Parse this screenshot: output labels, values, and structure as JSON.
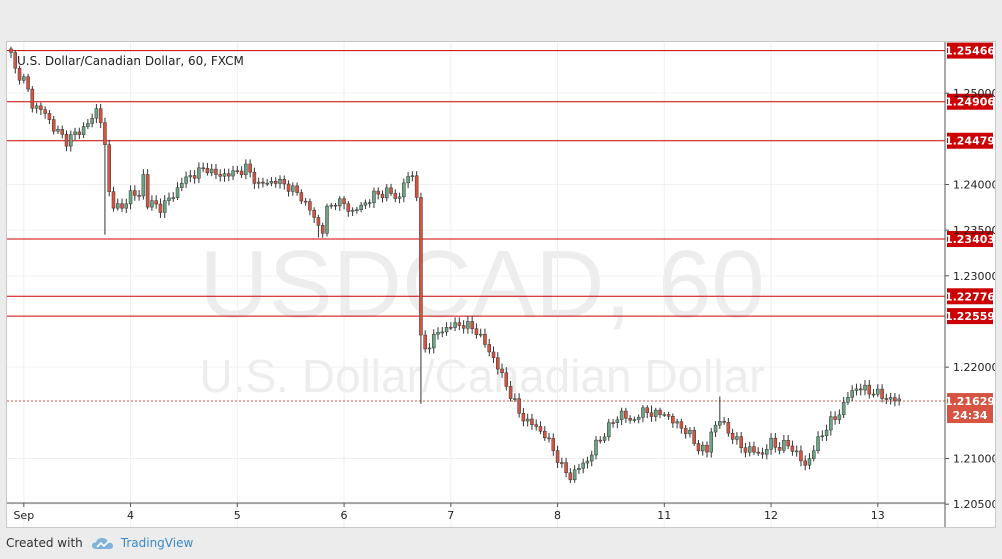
{
  "chart_data": {
    "type": "candlestick",
    "title": "U.S. Dollar/Canadian Dollar, 60, FXCM",
    "watermark_symbol": "USDCAD, 60",
    "watermark_name": "U.S. Dollar/Canadian Dollar",
    "ylim": [
      1.2025,
      1.2556
    ],
    "y_ticks": [
      "1.25000",
      "1.24000",
      "1.23500",
      "1.23000",
      "1.22000",
      "1.21000",
      "1.20500"
    ],
    "x_ticks": [
      {
        "label": "Sep",
        "index": 3
      },
      {
        "label": "4",
        "index": 28
      },
      {
        "label": "5",
        "index": 53
      },
      {
        "label": "6",
        "index": 78
      },
      {
        "label": "7",
        "index": 103
      },
      {
        "label": "8",
        "index": 128
      },
      {
        "label": "11",
        "index": 153
      },
      {
        "label": "12",
        "index": 178
      },
      {
        "label": "13",
        "index": 203
      }
    ],
    "levels": [
      {
        "value": 1.25466,
        "label": "1.25466"
      },
      {
        "value": 1.24906,
        "label": "1.24906"
      },
      {
        "value": 1.24479,
        "label": "1.24479"
      },
      {
        "value": 1.23403,
        "label": "1.23403"
      },
      {
        "value": 1.22776,
        "label": "1.22776"
      },
      {
        "value": 1.22559,
        "label": "1.22559"
      }
    ],
    "last_price": {
      "value": 1.21629,
      "label": "1.21629",
      "countdown": "24:34"
    },
    "colors": {
      "up": "#6ba583",
      "down": "#d75442",
      "level": "#cc0000",
      "wick": "#333333"
    },
    "close_path": [
      [
        0,
        1.2542
      ],
      [
        1,
        1.2525
      ],
      [
        3,
        1.2515
      ],
      [
        5,
        1.2488
      ],
      [
        8,
        1.2478
      ],
      [
        10,
        1.2462
      ],
      [
        13,
        1.2448
      ],
      [
        15,
        1.2455
      ],
      [
        17,
        1.2462
      ],
      [
        19,
        1.2472
      ],
      [
        20,
        1.2482
      ],
      [
        21,
        1.2472
      ],
      [
        22,
        1.244
      ],
      [
        23,
        1.239
      ],
      [
        24,
        1.238
      ],
      [
        26,
        1.2372
      ],
      [
        28,
        1.2392
      ],
      [
        30,
        1.2386
      ],
      [
        31,
        1.241
      ],
      [
        32,
        1.238
      ],
      [
        35,
        1.2375
      ],
      [
        38,
        1.2388
      ],
      [
        40,
        1.2403
      ],
      [
        43,
        1.2412
      ],
      [
        46,
        1.2418
      ],
      [
        48,
        1.241
      ],
      [
        52,
        1.2412
      ],
      [
        55,
        1.2418
      ],
      [
        58,
        1.24
      ],
      [
        62,
        1.2404
      ],
      [
        65,
        1.2398
      ],
      [
        68,
        1.2386
      ],
      [
        70,
        1.2372
      ],
      [
        72,
        1.2355
      ],
      [
        73,
        1.235
      ],
      [
        74,
        1.2372
      ],
      [
        76,
        1.2382
      ],
      [
        78,
        1.2378
      ],
      [
        80,
        1.237
      ],
      [
        82,
        1.2376
      ],
      [
        85,
        1.2388
      ],
      [
        88,
        1.2392
      ],
      [
        91,
        1.2385
      ],
      [
        92,
        1.2403
      ],
      [
        94,
        1.241
      ],
      [
        95,
        1.239
      ],
      [
        96,
        1.223
      ],
      [
        97,
        1.222
      ],
      [
        100,
        1.2238
      ],
      [
        103,
        1.2245
      ],
      [
        106,
        1.2247
      ],
      [
        109,
        1.224
      ],
      [
        111,
        1.2225
      ],
      [
        113,
        1.221
      ],
      [
        115,
        1.219
      ],
      [
        117,
        1.217
      ],
      [
        119,
        1.215
      ],
      [
        121,
        1.214
      ],
      [
        123,
        1.2135
      ],
      [
        125,
        1.2125
      ],
      [
        127,
        1.211
      ],
      [
        129,
        1.209
      ],
      [
        131,
        1.208
      ],
      [
        133,
        1.209
      ],
      [
        135,
        1.2098
      ],
      [
        137,
        1.2115
      ],
      [
        139,
        1.2128
      ],
      [
        141,
        1.214
      ],
      [
        143,
        1.215
      ],
      [
        145,
        1.214
      ],
      [
        147,
        1.2148
      ],
      [
        149,
        1.2152
      ],
      [
        151,
        1.2148
      ],
      [
        153,
        1.215
      ],
      [
        155,
        1.214
      ],
      [
        157,
        1.2135
      ],
      [
        159,
        1.2125
      ],
      [
        161,
        1.2112
      ],
      [
        163,
        1.2108
      ],
      [
        164,
        1.213
      ],
      [
        166,
        1.2142
      ],
      [
        168,
        1.213
      ],
      [
        170,
        1.2118
      ],
      [
        172,
        1.211
      ],
      [
        174,
        1.2108
      ],
      [
        176,
        1.2105
      ],
      [
        178,
        1.2118
      ],
      [
        180,
        1.2112
      ],
      [
        182,
        1.2116
      ],
      [
        184,
        1.2105
      ],
      [
        186,
        1.2092
      ],
      [
        188,
        1.211
      ],
      [
        190,
        1.2128
      ],
      [
        192,
        1.214
      ],
      [
        194,
        1.215
      ],
      [
        196,
        1.2168
      ],
      [
        198,
        1.2178
      ],
      [
        200,
        1.2175
      ],
      [
        202,
        1.2173
      ],
      [
        204,
        1.2168
      ],
      [
        206,
        1.2165
      ],
      [
        208,
        1.2163
      ]
    ],
    "spikes": [
      {
        "index": 22,
        "low": 1.2345
      },
      {
        "index": 72,
        "low": 1.2342
      },
      {
        "index": 96,
        "low": 1.216
      },
      {
        "index": 150,
        "high": 1.2158
      },
      {
        "index": 166,
        "high": 1.2168
      }
    ]
  },
  "footer": {
    "created_with": "Created with",
    "brand": "TradingView",
    "brand_color": "#3a88c9",
    "icon": "tradingview-cloud-icon"
  }
}
